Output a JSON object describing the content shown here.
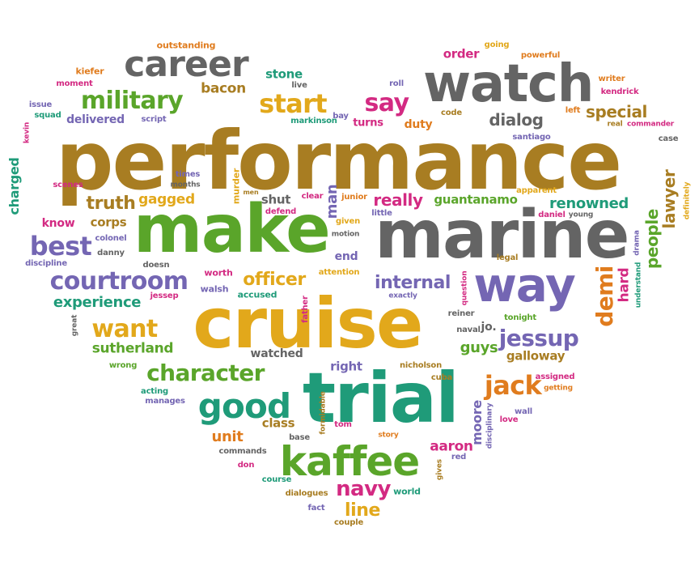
{
  "colors": {
    "brown": "#a87d22",
    "gray": "#646464",
    "green": "#5aa52a",
    "teal": "#1f9b79",
    "gold": "#e2a81b",
    "purple": "#7466b3",
    "magenta": "#d32a82",
    "orange": "#e07c1e"
  },
  "words": {
    "performance": "performance",
    "marine": "marine",
    "make": "make",
    "cruise": "cruise",
    "trial": "trial",
    "watch": "watch",
    "way": "way",
    "kaffee": "kaffee",
    "career": "career",
    "good": "good",
    "military": "military",
    "courtroom": "courtroom",
    "start": "start",
    "say": "say",
    "character": "character",
    "jack": "jack",
    "jessup": "jessup",
    "want": "want",
    "best": "best",
    "truth": "truth",
    "navy": "navy",
    "demi": "demi",
    "internal": "internal",
    "officer": "officer",
    "really": "really",
    "dialog": "dialog",
    "special": "special",
    "lawyer": "lawyer",
    "people": "people",
    "renowned": "renowned",
    "experience": "experience",
    "sutherland": "sutherland",
    "guantanamo": "guantanamo",
    "gagged": "gagged",
    "line": "line",
    "galloway": "galloway",
    "guys": "guys",
    "aaron": "aaron",
    "moore": "moore",
    "hard": "hard",
    "delivered": "delivered",
    "unit": "unit",
    "bacon": "bacon",
    "stone": "stone",
    "order": "order",
    "watched": "watched",
    "corps": "corps",
    "know": "know",
    "end": "end",
    "right": "right",
    "class": "class",
    "shut": "shut",
    "man": "man",
    "duty": "duty",
    "turns": "turns",
    "charged": "charged",
    "markinson": "markinson",
    "kiefer": "kiefer",
    "moment": "moment",
    "outstanding": "outstanding",
    "issue": "issue",
    "squad": "squad",
    "kevin": "kevin",
    "script": "script",
    "live": "live",
    "roll": "roll",
    "bay": "bay",
    "code": "code",
    "left": "left",
    "going": "going",
    "powerful": "powerful",
    "writer": "writer",
    "kendrick": "kendrick",
    "real": "real",
    "commander": "commander",
    "santiago": "santiago",
    "case": "case",
    "definitely": "definitely",
    "apparent": "apparent",
    "scenes": "scenes",
    "times": "times",
    "months": "months",
    "murder": "murder",
    "men": "men",
    "clear": "clear",
    "defend": "defend",
    "junior": "junior",
    "little": "little",
    "given": "given",
    "motion": "motion",
    "daniel": "daniel",
    "young": "young",
    "drama": "drama",
    "understand": "understand",
    "colonel": "colonel",
    "danny": "danny",
    "discipline": "discipline",
    "doesn": "doesn",
    "worth": "worth",
    "attention": "attention",
    "legal": "legal",
    "question": "question",
    "walsh": "walsh",
    "jessep": "jessep",
    "accused": "accused",
    "father": "father",
    "exactly": "exactly",
    "tonight": "tonight",
    "great": "great",
    "naval": "naval",
    "reiner": "reiner",
    "jo": "jo.",
    "wrong": "wrong",
    "acting": "acting",
    "manages": "manages",
    "nicholson": "nicholson",
    "cuba": "cuba",
    "assigned": "assigned",
    "getting": "getting",
    "formidable": "formidable",
    "disciplinary": "disciplinary",
    "wall": "wall",
    "love": "love",
    "tom": "tom",
    "story": "story",
    "base": "base",
    "commands": "commands",
    "gives": "gives",
    "red": "red",
    "don": "don",
    "course": "course",
    "world": "world",
    "dialogues": "dialogues",
    "fact": "fact",
    "couple": "couple"
  }
}
